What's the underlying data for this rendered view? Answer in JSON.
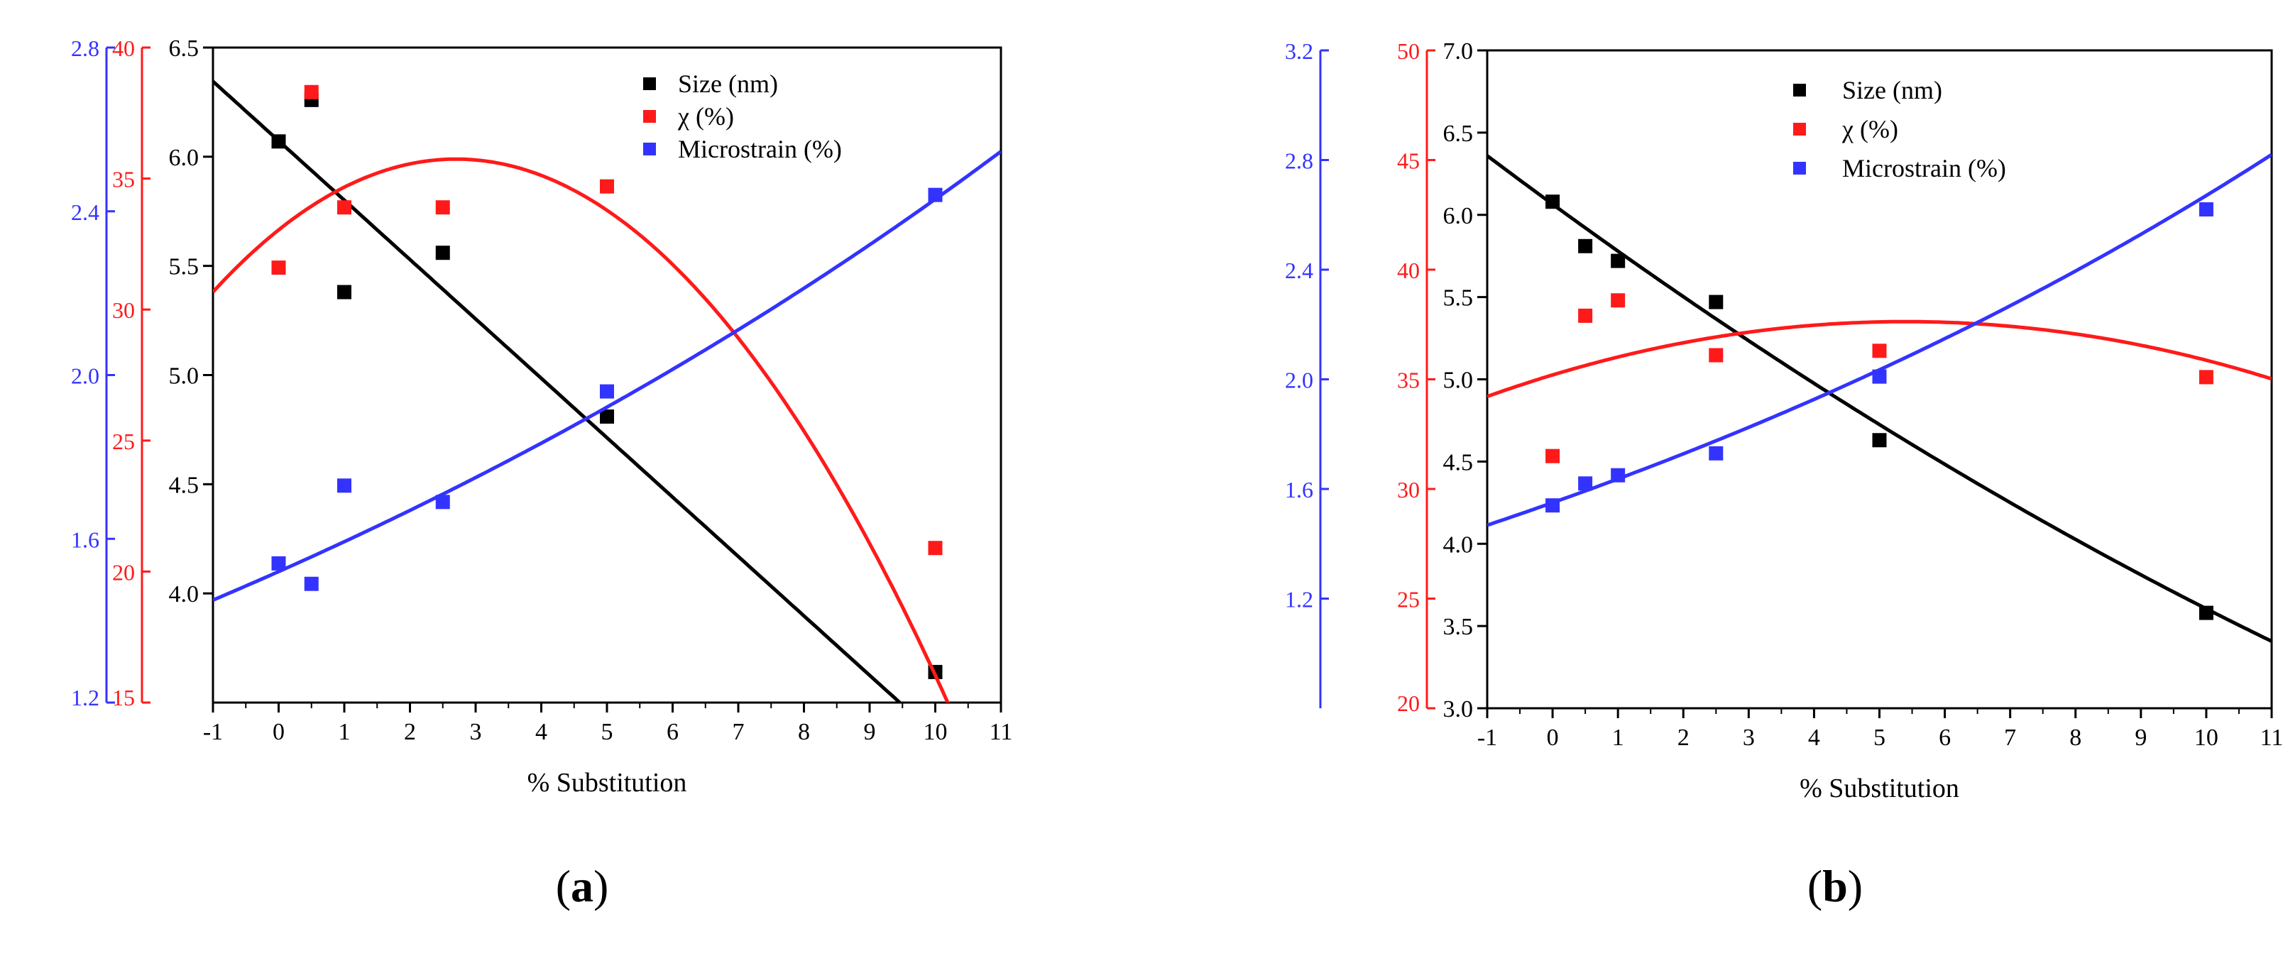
{
  "figure": {
    "x_label": "% Substitution"
  },
  "legend_markers": [
    "square-marker-icon",
    "square-marker-icon",
    "square-marker-icon"
  ],
  "chart_data": [
    {
      "id": "a",
      "type": "scatter",
      "caption": {
        "open": "(",
        "letter": "a",
        "close": ")"
      },
      "xlabel": "% Substitution",
      "xlim": [
        -1,
        11
      ],
      "xticks": [
        -1,
        0,
        1,
        2,
        3,
        4,
        5,
        6,
        7,
        8,
        9,
        10,
        11
      ],
      "legend_position": "top-right",
      "axes": {
        "size": {
          "range": [
            3.5,
            6.5
          ],
          "ticks": [
            4.0,
            4.5,
            5.0,
            5.5,
            6.0,
            6.5
          ],
          "tick_labels": [
            "4.0",
            "4.5",
            "5.0",
            "5.5",
            "6.0",
            "6.5"
          ],
          "color": "#000000"
        },
        "chi": {
          "range": [
            15,
            40
          ],
          "ticks": [
            15,
            20,
            25,
            30,
            35,
            40
          ],
          "tick_labels": [
            "15",
            "20",
            "25",
            "30",
            "35",
            "40"
          ],
          "color": "#ff1a1a"
        },
        "strain": {
          "range": [
            1.2,
            2.8
          ],
          "ticks": [
            1.2,
            1.6,
            2.0,
            2.4,
            2.8
          ],
          "tick_labels": [
            "1.2",
            "1.6",
            "2.0",
            "2.4",
            "2.8"
          ],
          "color": "#3333ff"
        }
      },
      "series": [
        {
          "name": "Size (nm)",
          "axis": "size",
          "color": "#000000",
          "x": [
            0,
            0.5,
            1,
            2.5,
            5,
            10
          ],
          "y": [
            6.07,
            6.26,
            5.38,
            5.56,
            4.81,
            3.64
          ],
          "fit": {
            "kind": "poly",
            "coef": [
              6.073,
              -0.272,
              0.0
            ]
          }
        },
        {
          "name": "χ (%)",
          "axis": "chi",
          "color": "#ff1a1a",
          "x": [
            0,
            0.5,
            1,
            2.5,
            5,
            10
          ],
          "y": [
            31.6,
            38.3,
            33.9,
            33.9,
            34.7,
            20.9
          ],
          "fit": {
            "kind": "poly",
            "coef": [
              33.04,
              2.0,
              -0.37
            ]
          }
        },
        {
          "name": "Microstrain (%)",
          "axis": "strain",
          "color": "#3333ff",
          "x": [
            0,
            0.5,
            1,
            2.5,
            5,
            10
          ],
          "y": [
            1.54,
            1.49,
            1.73,
            1.69,
            1.96,
            2.44
          ],
          "fit": {
            "kind": "exp",
            "coef": [
              1.52,
              0.0469
            ]
          }
        }
      ]
    },
    {
      "id": "b",
      "type": "scatter",
      "caption": {
        "open": "(",
        "letter": "b",
        "close": ")"
      },
      "xlabel": "% Substitution",
      "xlim": [
        -1,
        11
      ],
      "xticks": [
        -1,
        0,
        1,
        2,
        3,
        4,
        5,
        6,
        7,
        8,
        9,
        10,
        11
      ],
      "legend_position": "top-center",
      "axes": {
        "size": {
          "range": [
            3.0,
            7.0
          ],
          "ticks": [
            3.0,
            3.5,
            4.0,
            4.5,
            5.0,
            5.5,
            6.0,
            6.5,
            7.0
          ],
          "tick_labels": [
            "3.0",
            "3.5",
            "4.0",
            "4.5",
            "5.0",
            "5.5",
            "6.0",
            "6.5",
            "7.0"
          ],
          "color": "#000000"
        },
        "chi": {
          "range": [
            20,
            50
          ],
          "ticks": [
            20,
            25,
            30,
            35,
            40,
            45,
            50
          ],
          "tick_labels": [
            "20",
            "25",
            "30",
            "35",
            "40",
            "45",
            "50"
          ],
          "color": "#ff1a1a"
        },
        "strain": {
          "range": [
            0.8,
            3.2
          ],
          "ticks": [
            1.2,
            1.6,
            2.0,
            2.4,
            2.8,
            3.2
          ],
          "tick_labels": [
            "1.2",
            "1.6",
            "2.0",
            "2.4",
            "2.8",
            "3.2"
          ],
          "color": "#3333ff"
        }
      },
      "series": [
        {
          "name": "Size (nm)",
          "axis": "size",
          "color": "#000000",
          "x": [
            0,
            0.5,
            1,
            2.5,
            5,
            10
          ],
          "y": [
            6.08,
            5.81,
            5.72,
            5.47,
            4.63,
            3.58
          ],
          "fit": {
            "kind": "poly",
            "coef": [
              6.065,
              -0.29,
              0.0044
            ]
          }
        },
        {
          "name": "χ (%)",
          "axis": "chi",
          "color": "#ff1a1a",
          "x": [
            0,
            0.5,
            1,
            2.5,
            5,
            10
          ],
          "y": [
            31.5,
            37.9,
            38.6,
            36.1,
            36.3,
            35.1
          ],
          "fit": {
            "kind": "poly",
            "coef": [
              35.2,
              0.9,
              -0.0833
            ]
          }
        },
        {
          "name": "Microstrain (%)",
          "axis": "strain",
          "color": "#3333ff",
          "x": [
            0,
            0.5,
            1,
            2.5,
            5,
            10
          ],
          "y": [
            1.54,
            1.62,
            1.65,
            1.73,
            2.01,
            2.62
          ],
          "fit": {
            "kind": "exp",
            "coef": [
              1.55,
              0.0544
            ]
          }
        }
      ]
    }
  ]
}
